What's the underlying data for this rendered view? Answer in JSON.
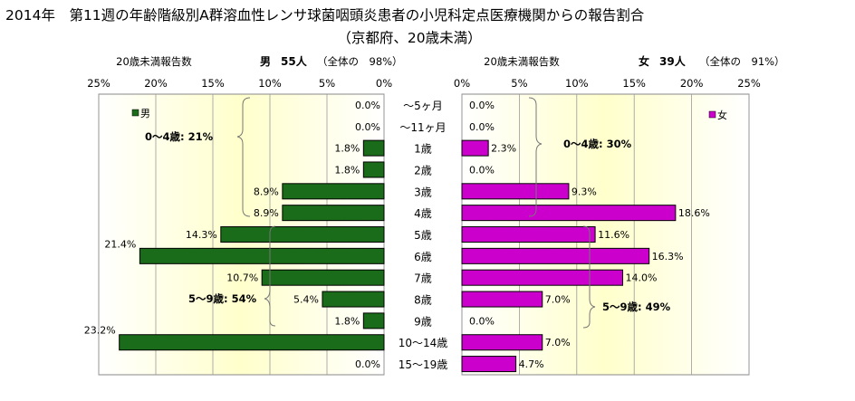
{
  "title_line1": "2014年　第11週の年齢階級別A群溶血性レンサ球菌咽頭炎患者の小児科定点医療機関からの報告割合",
  "title_line2": "（京都府、20歳未満）",
  "colors": {
    "male": "#1a6b1a",
    "female": "#cc00cc",
    "grid": "#999999",
    "plot_bg_center": "#ffffcc",
    "plot_bg_edge": "#ffffff"
  },
  "chart_data": [
    {
      "type": "bar",
      "orientation": "horizontal",
      "direction": "right-to-left",
      "axis_title": "20歳未満報告数",
      "header": {
        "sex": "男",
        "count": "55人",
        "share": "（全体の　98%）"
      },
      "legend": "男",
      "categories": [
        "～5ヶ月",
        "～11ヶ月",
        "1歳",
        "2歳",
        "3歳",
        "4歳",
        "5歳",
        "6歳",
        "7歳",
        "8歳",
        "9歳",
        "10～14歳",
        "15～19歳"
      ],
      "values": [
        0.0,
        0.0,
        1.8,
        1.8,
        8.9,
        8.9,
        14.3,
        21.4,
        10.7,
        5.4,
        1.8,
        23.2,
        0.0
      ],
      "value_labels": [
        "0.0%",
        "0.0%",
        "1.8%",
        "1.8%",
        "8.9%",
        "8.9%",
        "14.3%",
        "21.4%",
        "10.7%",
        "5.4%",
        "1.8%",
        "23.2%",
        "0.0%"
      ],
      "xlim": [
        0,
        25
      ],
      "ticks": [
        "0%",
        "5%",
        "10%",
        "15%",
        "20%",
        "25%"
      ],
      "annotations": [
        "0～4歳: 21%",
        "5～9歳: 54%"
      ]
    },
    {
      "type": "bar",
      "orientation": "horizontal",
      "direction": "left-to-right",
      "axis_title": "20歳未満報告数",
      "header": {
        "sex": "女",
        "count": "39人",
        "share": "（全体の　91%）"
      },
      "legend": "女",
      "categories": [
        "～5ヶ月",
        "～11ヶ月",
        "1歳",
        "2歳",
        "3歳",
        "4歳",
        "5歳",
        "6歳",
        "7歳",
        "8歳",
        "9歳",
        "10～14歳",
        "15～19歳"
      ],
      "values": [
        0.0,
        0.0,
        2.3,
        0.0,
        9.3,
        18.6,
        11.6,
        16.3,
        14.0,
        7.0,
        0.0,
        7.0,
        4.7
      ],
      "value_labels": [
        "0.0%",
        "0.0%",
        "2.3%",
        "0.0%",
        "9.3%",
        "18.6%",
        "11.6%",
        "16.3%",
        "14.0%",
        "7.0%",
        "0.0%",
        "7.0%",
        "4.7%"
      ],
      "xlim": [
        0,
        25
      ],
      "ticks": [
        "0%",
        "5%",
        "10%",
        "15%",
        "20%",
        "25%"
      ],
      "annotations": [
        "0～4歳: 30%",
        "5～9歳: 49%"
      ]
    }
  ]
}
